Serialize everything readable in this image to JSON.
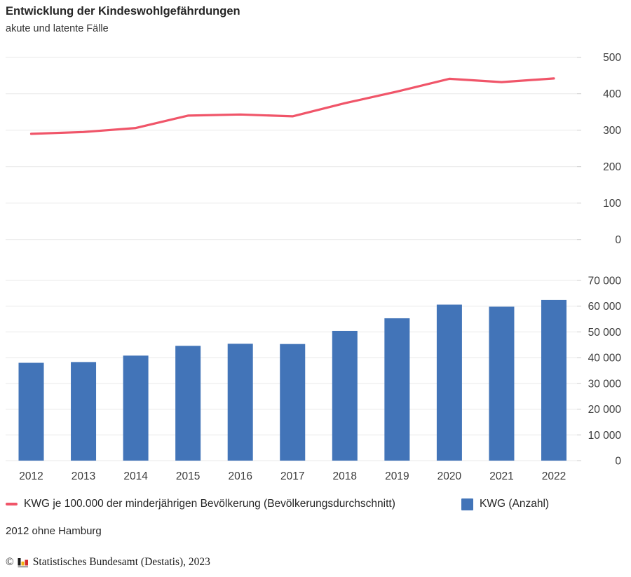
{
  "header": {
    "title": "Entwicklung der Kindeswohlgefährdungen",
    "subtitle": "akute und latente Fälle"
  },
  "chart_data": [
    {
      "type": "line",
      "name": "KWG je 100.000 der minderjährigen Bevölkerung (Bevölkerungsdurchschnitt)",
      "x": [
        "2012",
        "2013",
        "2014",
        "2015",
        "2016",
        "2017",
        "2018",
        "2019",
        "2020",
        "2021",
        "2022"
      ],
      "values": [
        290,
        295,
        306,
        340,
        343,
        338,
        374,
        406,
        441,
        432,
        442
      ],
      "ylim": [
        0,
        500
      ],
      "yticks": [
        500,
        400,
        300,
        200,
        100,
        0
      ],
      "ytick_labels": [
        "500",
        "400",
        "300",
        "200",
        "100",
        "0"
      ],
      "axis_side": "right",
      "grid": "on",
      "legend_position": "bottom",
      "color": "#F05569"
    },
    {
      "type": "bar",
      "name": "KWG (Anzahl)",
      "categories": [
        "2012",
        "2013",
        "2014",
        "2015",
        "2016",
        "2017",
        "2018",
        "2019",
        "2020",
        "2021",
        "2022"
      ],
      "values": [
        38000,
        38300,
        40800,
        44600,
        45400,
        45300,
        50400,
        55300,
        60600,
        59800,
        62400
      ],
      "ylim": [
        0,
        70000
      ],
      "yticks": [
        70000,
        60000,
        50000,
        40000,
        30000,
        20000,
        10000,
        0
      ],
      "ytick_labels": [
        "70 000",
        "60 000",
        "50 000",
        "40 000",
        "30 000",
        "20 000",
        "10 000",
        "0"
      ],
      "axis_side": "right",
      "grid": "on",
      "legend_position": "bottom",
      "color": "#4274B8"
    }
  ],
  "legend": {
    "line_label": "KWG je 100.000 der minderjährigen Bevölkerung (Bevölkerungsdurchschnitt)",
    "bar_label": "KWG (Anzahl)"
  },
  "footnote": "2012 ohne Hamburg",
  "source": {
    "copyright": "©",
    "logo": "destatis-bars-icon",
    "text": "Statistisches Bundesamt (Destatis), 2023"
  },
  "colors": {
    "line": "#F05569",
    "bar": "#4274B8",
    "grid": "#E9E9E9",
    "tick": "#CDCDCD",
    "axis_text": "#3C3C3C",
    "text": "#262626",
    "logo_black": "#1A1A1A",
    "logo_gold": "#F2B20F",
    "logo_red": "#D42D2D",
    "logo_base": "#8A8A8A"
  }
}
